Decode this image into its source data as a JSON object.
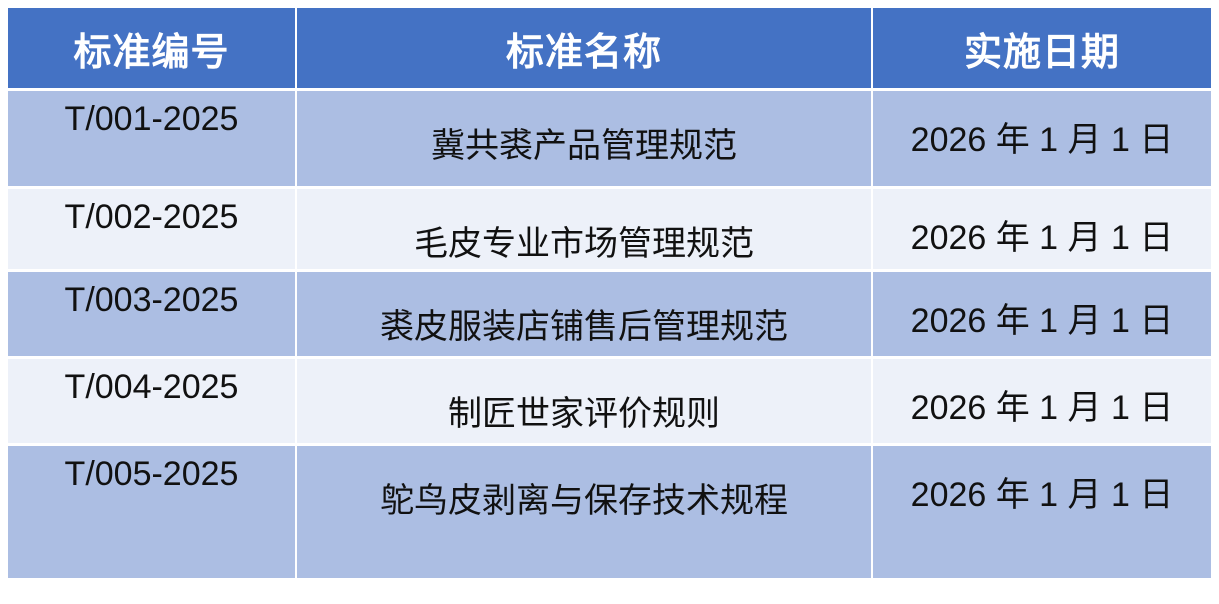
{
  "table": {
    "columns": [
      {
        "key": "code",
        "label": "标准编号"
      },
      {
        "key": "name",
        "label": "标准名称"
      },
      {
        "key": "date",
        "label": "实施日期"
      }
    ],
    "rows": [
      {
        "code": "T/001-2025",
        "name": "冀共裘产品管理规范",
        "date": "2026 年 1 月 1 日"
      },
      {
        "code": "T/002-2025",
        "name": "毛皮专业市场管理规范",
        "date": "2026 年 1 月 1 日"
      },
      {
        "code": "T/003-2025",
        "name": "裘皮服装店铺售后管理规范",
        "date": "2026 年 1 月 1 日"
      },
      {
        "code": "T/004-2025",
        "name": "制匠世家评价规则",
        "date": "2026 年 1 月 1 日"
      },
      {
        "code": "T/005-2025",
        "name": "鸵鸟皮剥离与保存技术规程",
        "date": "2026 年 1 月 1 日"
      }
    ]
  },
  "colors": {
    "header_bg": "#4472C4",
    "header_text": "#FFFFFF",
    "row_odd_bg": "#ACBEE3",
    "row_even_bg": "#EDF1F9",
    "body_text": "#111111",
    "page_bg": "#FFFFFF"
  }
}
